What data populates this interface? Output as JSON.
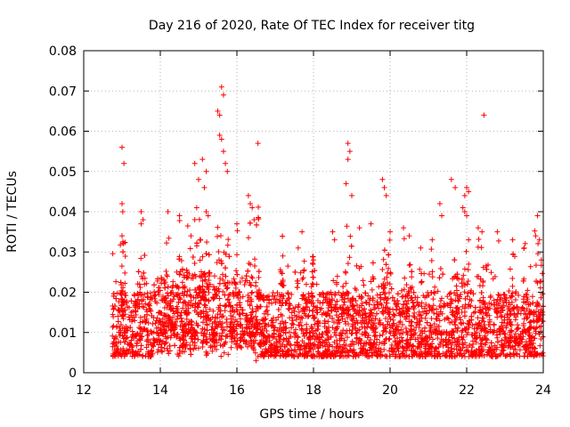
{
  "chart_data": {
    "type": "scatter",
    "title": "Day 216 of 2020, Rate Of TEC Index for receiver titg",
    "xlabel": "GPS time / hours",
    "ylabel": "ROTI / TECUs",
    "xlim": [
      12,
      24
    ],
    "ylim": [
      0,
      0.08
    ],
    "xticks": [
      12,
      14,
      16,
      18,
      20,
      22,
      24
    ],
    "xtick_labels": [
      "12",
      "14",
      "16",
      "18",
      "20",
      "22",
      "24"
    ],
    "yticks": [
      0,
      0.01,
      0.02,
      0.03,
      0.04,
      0.05,
      0.06,
      0.07,
      0.08
    ],
    "ytick_labels": [
      "0",
      "0.01",
      "0.02",
      "0.03",
      "0.04",
      "0.05",
      "0.06",
      "0.07",
      "0.08"
    ],
    "grid": true,
    "marker": "+",
    "marker_color": "#ff0000",
    "x_range_of_data": [
      12.75,
      24.0
    ],
    "series": [
      {
        "name": "ROTI",
        "description_of_bulk": "dense band of points mostly between 0.005 and 0.02 TECU/s from 12.75 to 24 h, with frequent spikes to 0.03-0.045",
        "points": [
          [
            13.0,
            0.056
          ],
          [
            13.05,
            0.052
          ],
          [
            13.0,
            0.042
          ],
          [
            13.02,
            0.04
          ],
          [
            13.0,
            0.034
          ],
          [
            13.5,
            0.04
          ],
          [
            13.55,
            0.038
          ],
          [
            13.5,
            0.037
          ],
          [
            14.2,
            0.04
          ],
          [
            14.5,
            0.039
          ],
          [
            14.8,
            0.034
          ],
          [
            14.9,
            0.038
          ],
          [
            14.95,
            0.041
          ],
          [
            15.0,
            0.048
          ],
          [
            14.9,
            0.052
          ],
          [
            15.1,
            0.053
          ],
          [
            15.2,
            0.05
          ],
          [
            15.15,
            0.046
          ],
          [
            15.2,
            0.04
          ],
          [
            15.25,
            0.039
          ],
          [
            15.5,
            0.065
          ],
          [
            15.55,
            0.064
          ],
          [
            15.6,
            0.071
          ],
          [
            15.65,
            0.069
          ],
          [
            15.55,
            0.059
          ],
          [
            15.6,
            0.058
          ],
          [
            15.65,
            0.055
          ],
          [
            15.7,
            0.052
          ],
          [
            15.75,
            0.05
          ],
          [
            16.0,
            0.037
          ],
          [
            16.3,
            0.044
          ],
          [
            16.35,
            0.042
          ],
          [
            16.4,
            0.041
          ],
          [
            16.45,
            0.038
          ],
          [
            16.55,
            0.057
          ],
          [
            16.5,
            0.003
          ],
          [
            16.55,
            0.004
          ],
          [
            17.2,
            0.029
          ],
          [
            17.6,
            0.031
          ],
          [
            17.7,
            0.035
          ],
          [
            18.0,
            0.028
          ],
          [
            18.5,
            0.035
          ],
          [
            18.55,
            0.033
          ],
          [
            18.9,
            0.057
          ],
          [
            18.95,
            0.055
          ],
          [
            18.9,
            0.053
          ],
          [
            18.85,
            0.047
          ],
          [
            19.0,
            0.044
          ],
          [
            19.2,
            0.036
          ],
          [
            19.5,
            0.037
          ],
          [
            19.8,
            0.048
          ],
          [
            19.9,
            0.044
          ],
          [
            19.85,
            0.046
          ],
          [
            20.0,
            0.035
          ],
          [
            20.35,
            0.036
          ],
          [
            20.5,
            0.034
          ],
          [
            20.8,
            0.031
          ],
          [
            21.1,
            0.033
          ],
          [
            21.3,
            0.042
          ],
          [
            21.35,
            0.039
          ],
          [
            21.6,
            0.048
          ],
          [
            21.7,
            0.046
          ],
          [
            21.9,
            0.041
          ],
          [
            21.95,
            0.044
          ],
          [
            22.0,
            0.046
          ],
          [
            22.05,
            0.045
          ],
          [
            21.95,
            0.04
          ],
          [
            22.0,
            0.039
          ],
          [
            22.05,
            0.033
          ],
          [
            22.45,
            0.064
          ],
          [
            22.3,
            0.036
          ],
          [
            22.4,
            0.035
          ],
          [
            22.8,
            0.035
          ],
          [
            23.2,
            0.033
          ],
          [
            23.5,
            0.031
          ],
          [
            23.8,
            0.034
          ],
          [
            23.85,
            0.039
          ],
          [
            23.9,
            0.033
          ],
          [
            23.95,
            0.028
          ]
        ]
      }
    ]
  }
}
